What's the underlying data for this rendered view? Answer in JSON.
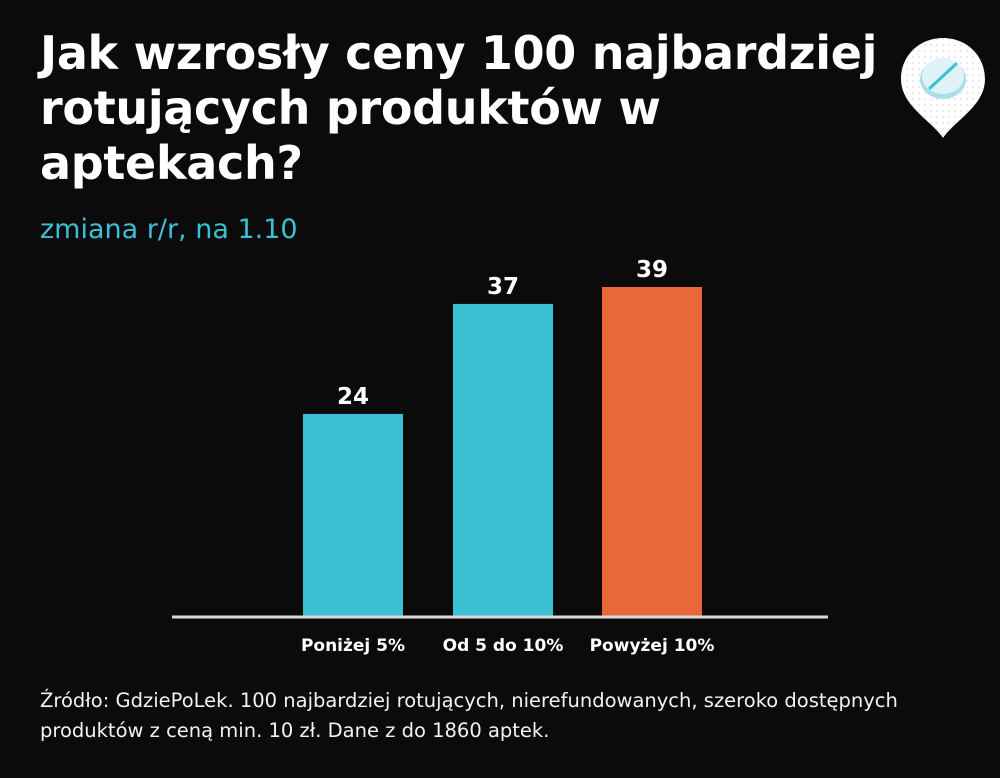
{
  "chart_data": {
    "type": "bar",
    "title": "Jak wzrosły ceny 100 najbardziej rotujących produktów w aptekach?",
    "subtitle": "zmiana r/r, na 1.10",
    "categories": [
      "Poniżej 5%",
      "Od 5 do 10%",
      "Powyżej 10%"
    ],
    "values": [
      24,
      37,
      39
    ],
    "value_labels": [
      "24",
      "37",
      "39"
    ],
    "colors": [
      "#3bbfd3",
      "#3bbfd3",
      "#e8683a"
    ],
    "xlabel": "",
    "ylabel": "",
    "ylim": [
      0,
      39
    ],
    "grid": false,
    "legend": "none"
  },
  "source": "Źródło: GdziePoLek. 100 najbardziej rotujących, nierefundowanych, szeroko dostępnych produktów z ceną min. 10 zł. Dane z do 1860 aptek.",
  "logo": {
    "icon": "pill-pin-icon"
  }
}
